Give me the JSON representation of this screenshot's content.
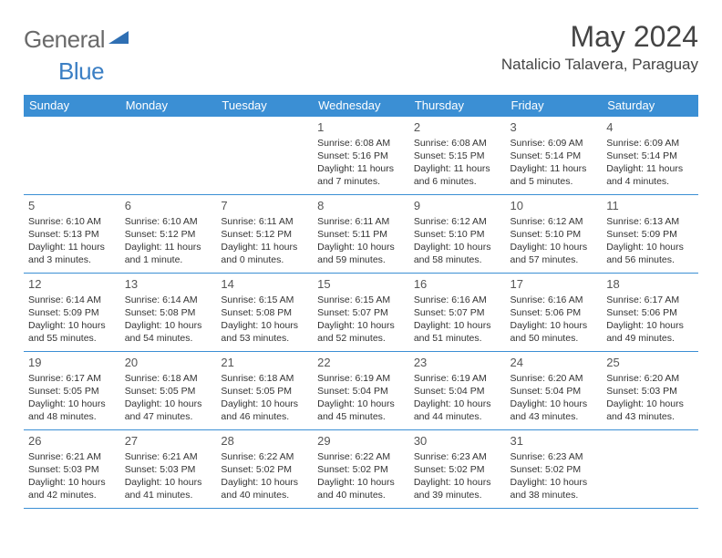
{
  "brand": {
    "part1": "General",
    "part2": "Blue"
  },
  "title": "May 2024",
  "location": "Natalicio Talavera, Paraguay",
  "colors": {
    "header_bg": "#3b8fd4",
    "header_text": "#ffffff",
    "border": "#3b8fd4",
    "logo_gray": "#6a6a6a",
    "logo_blue": "#3b7fc4",
    "text": "#333333"
  },
  "weekdays": [
    "Sunday",
    "Monday",
    "Tuesday",
    "Wednesday",
    "Thursday",
    "Friday",
    "Saturday"
  ],
  "weeks": [
    [
      null,
      null,
      null,
      {
        "d": "1",
        "sr": "6:08 AM",
        "ss": "5:16 PM",
        "dl": "11 hours and 7 minutes."
      },
      {
        "d": "2",
        "sr": "6:08 AM",
        "ss": "5:15 PM",
        "dl": "11 hours and 6 minutes."
      },
      {
        "d": "3",
        "sr": "6:09 AM",
        "ss": "5:14 PM",
        "dl": "11 hours and 5 minutes."
      },
      {
        "d": "4",
        "sr": "6:09 AM",
        "ss": "5:14 PM",
        "dl": "11 hours and 4 minutes."
      }
    ],
    [
      {
        "d": "5",
        "sr": "6:10 AM",
        "ss": "5:13 PM",
        "dl": "11 hours and 3 minutes."
      },
      {
        "d": "6",
        "sr": "6:10 AM",
        "ss": "5:12 PM",
        "dl": "11 hours and 1 minute."
      },
      {
        "d": "7",
        "sr": "6:11 AM",
        "ss": "5:12 PM",
        "dl": "11 hours and 0 minutes."
      },
      {
        "d": "8",
        "sr": "6:11 AM",
        "ss": "5:11 PM",
        "dl": "10 hours and 59 minutes."
      },
      {
        "d": "9",
        "sr": "6:12 AM",
        "ss": "5:10 PM",
        "dl": "10 hours and 58 minutes."
      },
      {
        "d": "10",
        "sr": "6:12 AM",
        "ss": "5:10 PM",
        "dl": "10 hours and 57 minutes."
      },
      {
        "d": "11",
        "sr": "6:13 AM",
        "ss": "5:09 PM",
        "dl": "10 hours and 56 minutes."
      }
    ],
    [
      {
        "d": "12",
        "sr": "6:14 AM",
        "ss": "5:09 PM",
        "dl": "10 hours and 55 minutes."
      },
      {
        "d": "13",
        "sr": "6:14 AM",
        "ss": "5:08 PM",
        "dl": "10 hours and 54 minutes."
      },
      {
        "d": "14",
        "sr": "6:15 AM",
        "ss": "5:08 PM",
        "dl": "10 hours and 53 minutes."
      },
      {
        "d": "15",
        "sr": "6:15 AM",
        "ss": "5:07 PM",
        "dl": "10 hours and 52 minutes."
      },
      {
        "d": "16",
        "sr": "6:16 AM",
        "ss": "5:07 PM",
        "dl": "10 hours and 51 minutes."
      },
      {
        "d": "17",
        "sr": "6:16 AM",
        "ss": "5:06 PM",
        "dl": "10 hours and 50 minutes."
      },
      {
        "d": "18",
        "sr": "6:17 AM",
        "ss": "5:06 PM",
        "dl": "10 hours and 49 minutes."
      }
    ],
    [
      {
        "d": "19",
        "sr": "6:17 AM",
        "ss": "5:05 PM",
        "dl": "10 hours and 48 minutes."
      },
      {
        "d": "20",
        "sr": "6:18 AM",
        "ss": "5:05 PM",
        "dl": "10 hours and 47 minutes."
      },
      {
        "d": "21",
        "sr": "6:18 AM",
        "ss": "5:05 PM",
        "dl": "10 hours and 46 minutes."
      },
      {
        "d": "22",
        "sr": "6:19 AM",
        "ss": "5:04 PM",
        "dl": "10 hours and 45 minutes."
      },
      {
        "d": "23",
        "sr": "6:19 AM",
        "ss": "5:04 PM",
        "dl": "10 hours and 44 minutes."
      },
      {
        "d": "24",
        "sr": "6:20 AM",
        "ss": "5:04 PM",
        "dl": "10 hours and 43 minutes."
      },
      {
        "d": "25",
        "sr": "6:20 AM",
        "ss": "5:03 PM",
        "dl": "10 hours and 43 minutes."
      }
    ],
    [
      {
        "d": "26",
        "sr": "6:21 AM",
        "ss": "5:03 PM",
        "dl": "10 hours and 42 minutes."
      },
      {
        "d": "27",
        "sr": "6:21 AM",
        "ss": "5:03 PM",
        "dl": "10 hours and 41 minutes."
      },
      {
        "d": "28",
        "sr": "6:22 AM",
        "ss": "5:02 PM",
        "dl": "10 hours and 40 minutes."
      },
      {
        "d": "29",
        "sr": "6:22 AM",
        "ss": "5:02 PM",
        "dl": "10 hours and 40 minutes."
      },
      {
        "d": "30",
        "sr": "6:23 AM",
        "ss": "5:02 PM",
        "dl": "10 hours and 39 minutes."
      },
      {
        "d": "31",
        "sr": "6:23 AM",
        "ss": "5:02 PM",
        "dl": "10 hours and 38 minutes."
      },
      null
    ]
  ],
  "labels": {
    "sunrise": "Sunrise:",
    "sunset": "Sunset:",
    "daylight": "Daylight:"
  }
}
